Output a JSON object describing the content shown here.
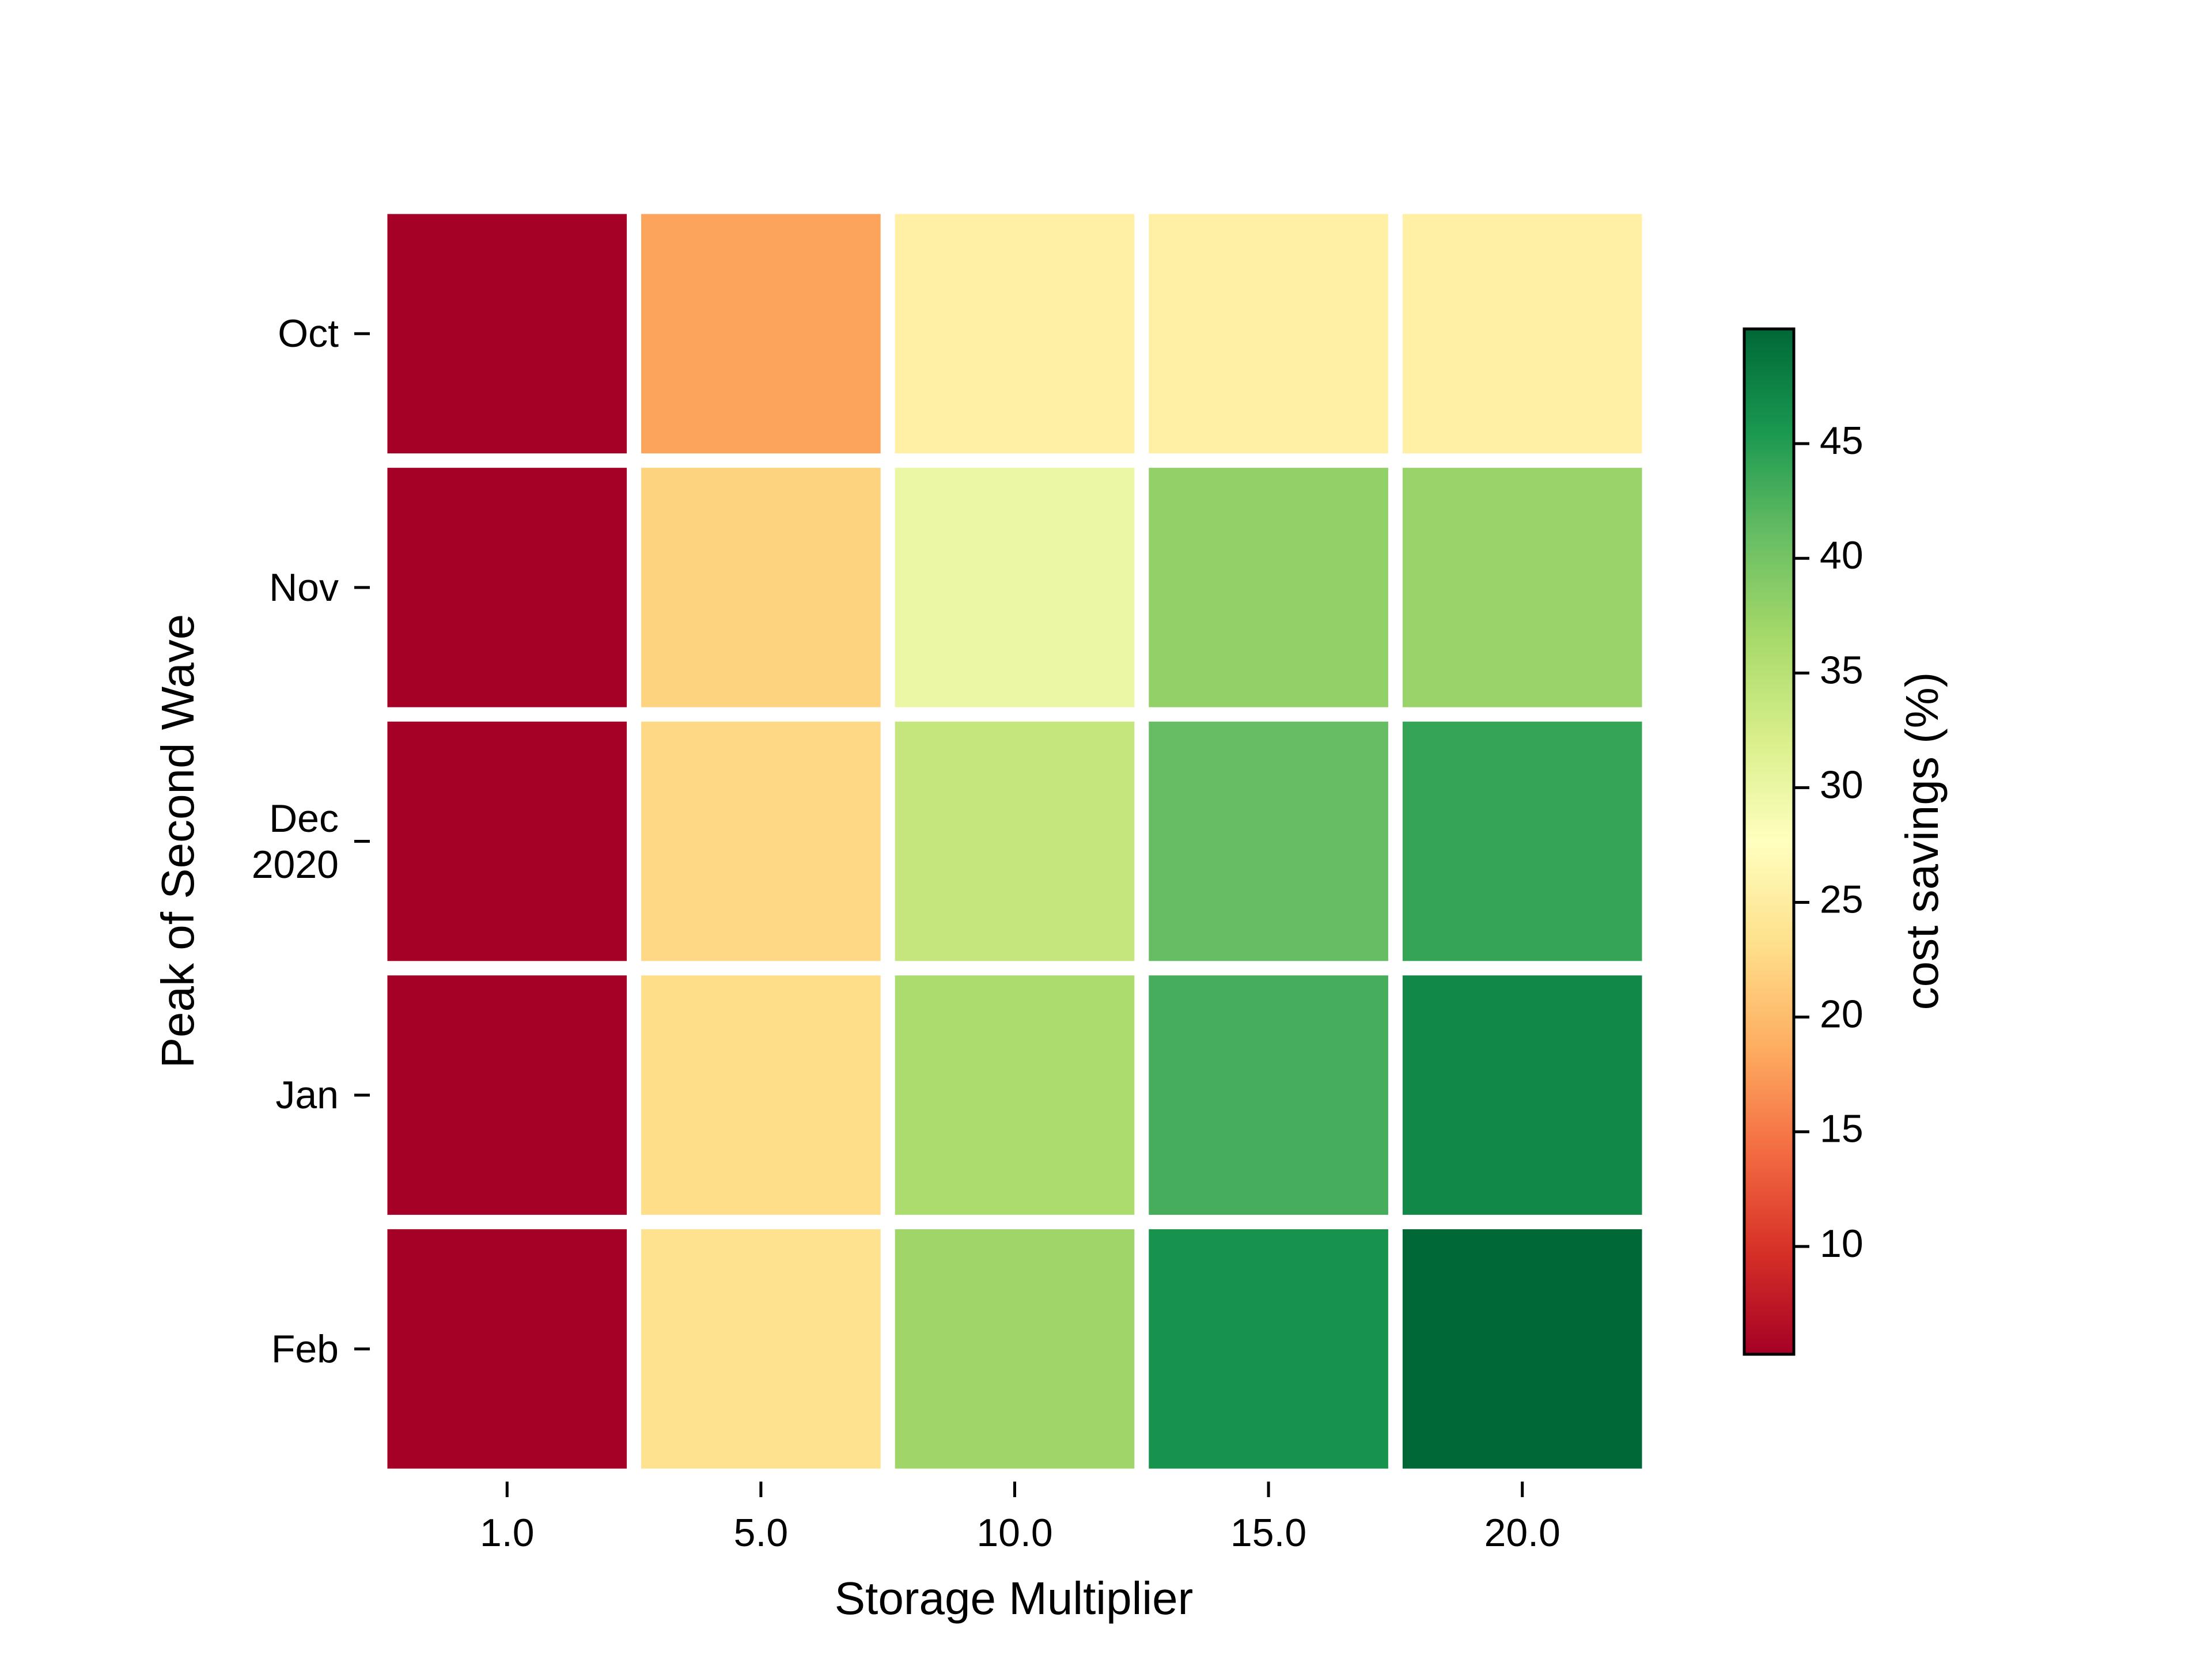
{
  "chart_data": {
    "type": "heatmap",
    "x_label": "Storage Multiplier",
    "y_label": "Peak of Second Wave",
    "colorbar_label": "cost savings (%)",
    "colormap": "RdYlGn",
    "x_categories": [
      "1.0",
      "5.0",
      "10.0",
      "15.0",
      "20.0"
    ],
    "y_categories": [
      "Oct",
      "Nov",
      "Dec\n2020",
      "Jan",
      "Feb"
    ],
    "values": [
      [
        5.3,
        18,
        25.5,
        25.5,
        25.5
      ],
      [
        5.3,
        22,
        30,
        38,
        37.5
      ],
      [
        5.3,
        22.5,
        34,
        41,
        44
      ],
      [
        5.3,
        23,
        36,
        43,
        47
      ],
      [
        5.3,
        23.5,
        37,
        46,
        50
      ]
    ],
    "zlim": [
      5.3,
      50
    ],
    "zticks": [
      10,
      15,
      20,
      25,
      30,
      35,
      40,
      45
    ]
  }
}
